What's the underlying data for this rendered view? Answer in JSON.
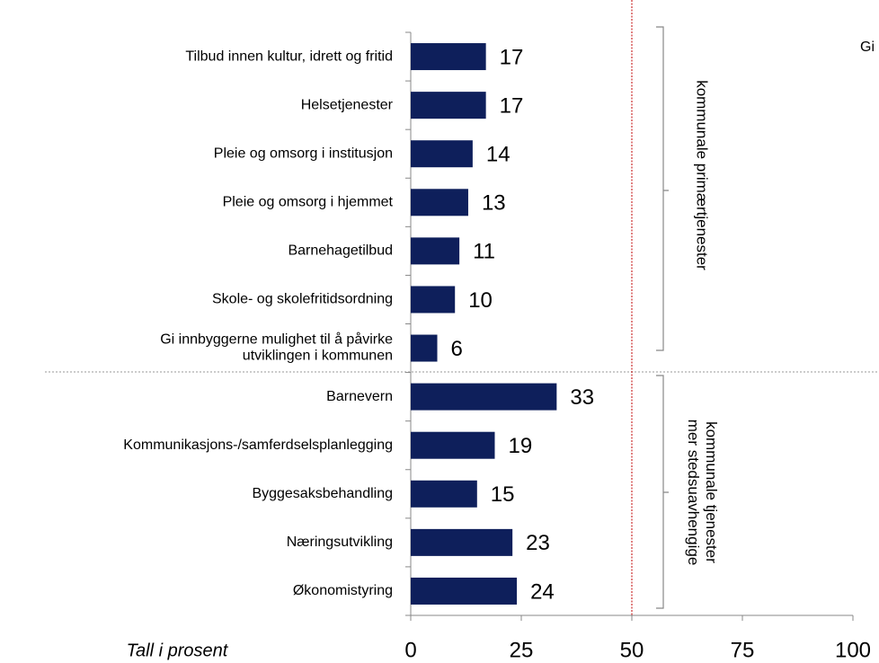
{
  "chart_data": {
    "type": "barh",
    "categories": [
      "Tilbud innen kultur, idrett og fritid",
      "Helsetjenester",
      "Pleie og omsorg i institusjon",
      "Pleie og omsorg i hjemmet",
      "Barnehagetilbud",
      "Skole- og skolefritidsordning",
      "Gi innbyggerne mulighet til å påvirke\nutviklingen i kommunen",
      "Barnevern",
      "Kommunikasjons-/samferdselsplanlegging",
      "Byggesaksbehandling",
      "Næringsutvikling",
      "Økonomistyring"
    ],
    "values": [
      17,
      17,
      14,
      13,
      11,
      10,
      6,
      33,
      19,
      15,
      23,
      24
    ],
    "color": "#0e1f5b",
    "xlim": [
      0,
      100
    ],
    "xticks": [
      0,
      25,
      50,
      75,
      100
    ],
    "xlabel": "Tall i prosent",
    "reference_line": 50,
    "annotations": [
      {
        "text": "kommunale primærtjenester"
      },
      {
        "text": "mer stedsuavhengige\nkommunale tjenester"
      },
      {
        "text": "Gi"
      }
    ]
  }
}
